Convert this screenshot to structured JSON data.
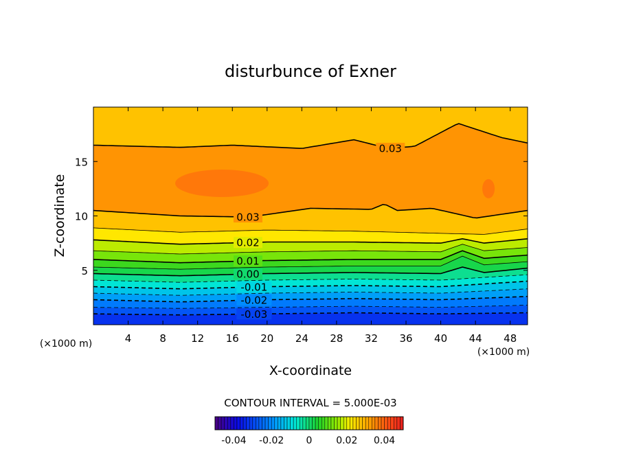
{
  "chart_data": {
    "type": "contour",
    "title": "disturbunce of Exner",
    "xlabel": "X-coordinate",
    "ylabel": "Z-coordinate",
    "x_unit": "(×1000 m)",
    "y_unit": "(×1000 m)",
    "xlim": [
      0,
      50
    ],
    "ylim": [
      0,
      20
    ],
    "x_ticks": [
      4,
      8,
      12,
      16,
      20,
      24,
      28,
      32,
      36,
      40,
      44,
      48
    ],
    "y_ticks": [
      5,
      10,
      15
    ],
    "contour_interval_text": "CONTOUR INTERVAL = 5.000E-03",
    "levels": [
      {
        "value": -0.03,
        "label": "-0.03",
        "style": "dashed",
        "label_x": 18.5,
        "z": [
          [
            0,
            1.0
          ],
          [
            10,
            0.9
          ],
          [
            20,
            1.0
          ],
          [
            30,
            1.1
          ],
          [
            40,
            1.0
          ],
          [
            50,
            1.1
          ]
        ]
      },
      {
        "value": -0.025,
        "style": "dashed",
        "z": [
          [
            0,
            1.6
          ],
          [
            10,
            1.5
          ],
          [
            20,
            1.6
          ],
          [
            30,
            1.7
          ],
          [
            40,
            1.6
          ],
          [
            50,
            1.8
          ]
        ]
      },
      {
        "value": -0.02,
        "label": "-0.02",
        "style": "dashed",
        "label_x": 18.5,
        "z": [
          [
            0,
            2.3
          ],
          [
            10,
            2.1
          ],
          [
            20,
            2.3
          ],
          [
            30,
            2.4
          ],
          [
            40,
            2.3
          ],
          [
            50,
            2.6
          ]
        ]
      },
      {
        "value": -0.015,
        "style": "dashed",
        "z": [
          [
            0,
            2.9
          ],
          [
            10,
            2.7
          ],
          [
            20,
            2.9
          ],
          [
            30,
            3.0
          ],
          [
            40,
            2.9
          ],
          [
            50,
            3.3
          ]
        ]
      },
      {
        "value": -0.01,
        "label": "-0.01",
        "style": "dashed",
        "label_x": 18.5,
        "z": [
          [
            0,
            3.5
          ],
          [
            10,
            3.3
          ],
          [
            20,
            3.5
          ],
          [
            30,
            3.6
          ],
          [
            40,
            3.5
          ],
          [
            50,
            4.0
          ]
        ]
      },
      {
        "value": -0.005,
        "style": "dashed",
        "z": [
          [
            0,
            4.1
          ],
          [
            10,
            3.9
          ],
          [
            20,
            4.1
          ],
          [
            30,
            4.2
          ],
          [
            40,
            4.1
          ],
          [
            50,
            4.6
          ]
        ]
      },
      {
        "value": 0.0,
        "label": "0.00",
        "style": "solid",
        "label_x": 17.8,
        "z": [
          [
            0,
            4.7
          ],
          [
            10,
            4.5
          ],
          [
            20,
            4.7
          ],
          [
            30,
            4.8
          ],
          [
            40,
            4.7
          ],
          [
            42.5,
            5.3
          ],
          [
            45,
            4.8
          ],
          [
            50,
            5.2
          ]
        ]
      },
      {
        "value": 0.005,
        "style": "solid",
        "z": [
          [
            0,
            5.3
          ],
          [
            10,
            5.1
          ],
          [
            20,
            5.3
          ],
          [
            30,
            5.4
          ],
          [
            40,
            5.4
          ],
          [
            42.5,
            6.3
          ],
          [
            45,
            5.5
          ],
          [
            50,
            5.8
          ]
        ]
      },
      {
        "value": 0.01,
        "label": "0.01",
        "style": "solid",
        "label_x": 17.8,
        "z": [
          [
            0,
            6.0
          ],
          [
            10,
            5.7
          ],
          [
            20,
            5.9
          ],
          [
            30,
            6.0
          ],
          [
            40,
            6.0
          ],
          [
            42.5,
            6.8
          ],
          [
            45,
            6.1
          ],
          [
            50,
            6.4
          ]
        ]
      },
      {
        "value": 0.015,
        "style": "solid",
        "z": [
          [
            0,
            6.8
          ],
          [
            10,
            6.5
          ],
          [
            20,
            6.7
          ],
          [
            30,
            6.8
          ],
          [
            40,
            6.7
          ],
          [
            42.5,
            7.4
          ],
          [
            45,
            6.8
          ],
          [
            50,
            7.1
          ]
        ]
      },
      {
        "value": 0.02,
        "label": "0.02",
        "style": "solid",
        "label_x": 17.8,
        "z": [
          [
            0,
            7.8
          ],
          [
            10,
            7.4
          ],
          [
            20,
            7.6
          ],
          [
            30,
            7.6
          ],
          [
            40,
            7.5
          ],
          [
            42.5,
            7.9
          ],
          [
            45,
            7.5
          ],
          [
            50,
            7.9
          ]
        ]
      },
      {
        "value": 0.025,
        "style": "solid",
        "z": [
          [
            0,
            8.9
          ],
          [
            10,
            8.5
          ],
          [
            20,
            8.7
          ],
          [
            30,
            8.6
          ],
          [
            40,
            8.4
          ],
          [
            45,
            8.3
          ],
          [
            50,
            8.8
          ]
        ]
      },
      {
        "value": 0.03,
        "label": "0.03",
        "style": "solid",
        "label_x": 17.8,
        "z": [
          [
            0,
            10.5
          ],
          [
            10,
            10.0
          ],
          [
            18,
            9.9
          ],
          [
            25,
            10.7
          ],
          [
            32,
            10.6
          ],
          [
            33.5,
            11.1
          ],
          [
            35,
            10.5
          ],
          [
            39,
            10.7
          ],
          [
            44,
            9.8
          ],
          [
            50,
            10.5
          ]
        ]
      },
      {
        "value": 0.03,
        "label": "0.03",
        "style": "solid",
        "label_x": 34.2,
        "z": [
          [
            0,
            16.5
          ],
          [
            10,
            16.3
          ],
          [
            16,
            16.5
          ],
          [
            24,
            16.2
          ],
          [
            30,
            17.0
          ],
          [
            34,
            16.2
          ],
          [
            37,
            16.4
          ],
          [
            42,
            18.5
          ],
          [
            47,
            17.2
          ],
          [
            50,
            16.7
          ]
        ]
      }
    ],
    "colorbar": {
      "range": [
        -0.05,
        0.05
      ],
      "tick_values": [
        -0.04,
        -0.02,
        0,
        0.02,
        0.04
      ],
      "tick_labels": [
        "-0.04",
        "-0.02",
        "0",
        "0.02",
        "0.04"
      ]
    }
  }
}
